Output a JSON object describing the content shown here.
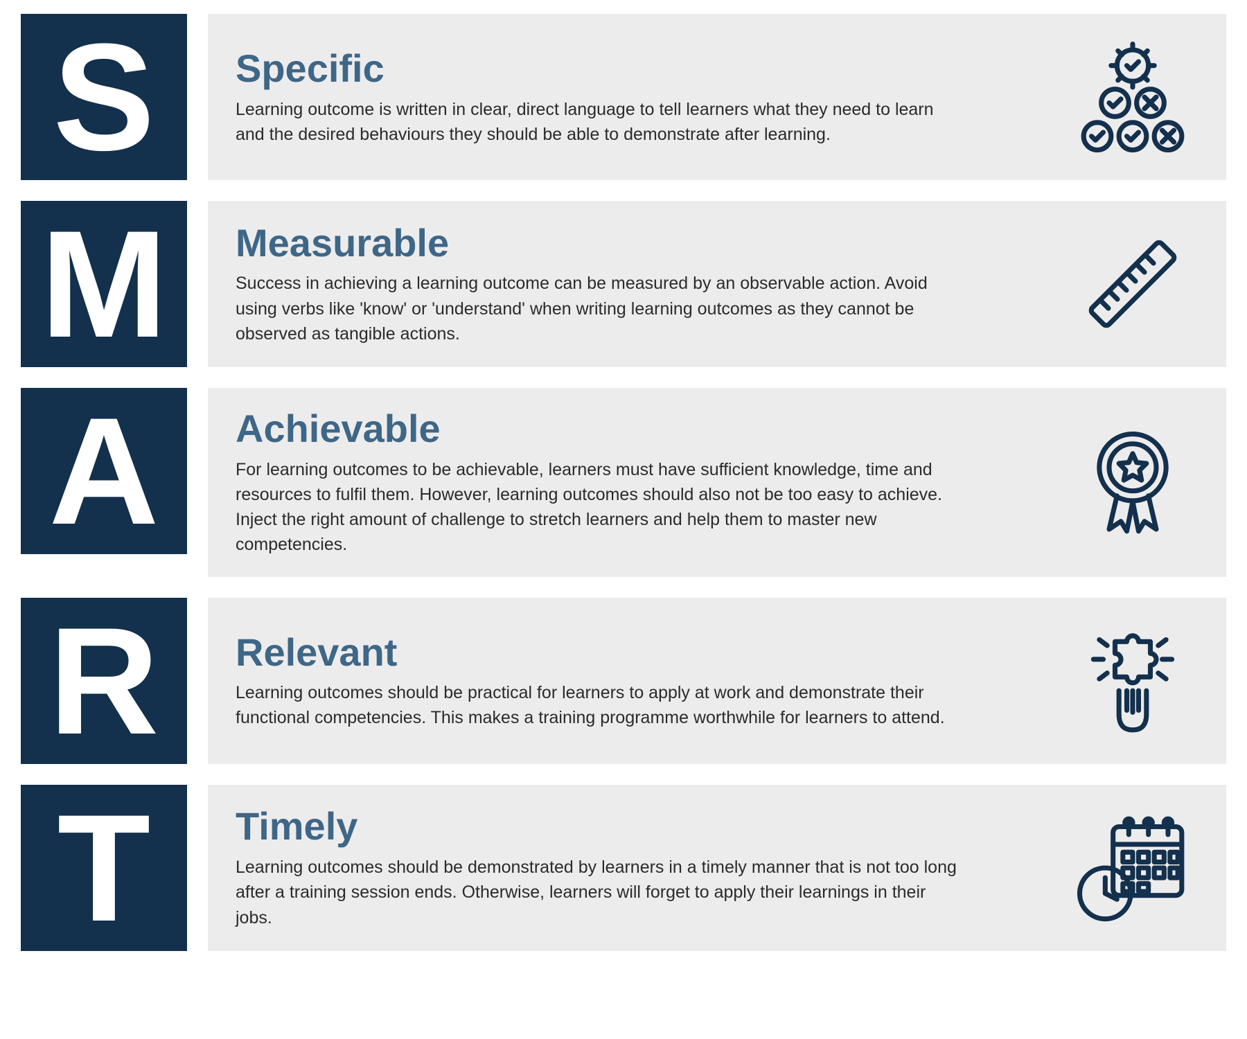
{
  "colors": {
    "letter_bg": "#13304d",
    "content_bg": "#edecec",
    "title": "#3e6787",
    "body_text": "#2b2b2b",
    "icon_stroke": "#13304d"
  },
  "layout": {
    "letter_box_size": 240,
    "letter_fontsize": 220,
    "title_fontsize": 56,
    "body_fontsize": 25,
    "row_gap": 30,
    "icon_size": 170
  },
  "rows": [
    {
      "letter": "S",
      "title": "Specific",
      "desc": "Learning outcome is written in clear, direct language to tell learners what they need to learn and the desired behaviours they should be able to demonstrate after learning.",
      "icon": "quality-check"
    },
    {
      "letter": "M",
      "title": "Measurable",
      "desc": "Success in achieving a learning outcome can be measured by an observable action. Avoid using verbs like 'know' or 'understand' when writing learning outcomes as they cannot be observed as tangible actions.",
      "icon": "ruler"
    },
    {
      "letter": "A",
      "title": "Achievable",
      "desc": "For learning outcomes to be achievable, learners must have sufficient knowledge, time and resources to fulfil them. However, learning outcomes should also not be too easy to achieve. Inject the right amount of challenge to stretch learners and help them to master new competencies.",
      "icon": "award"
    },
    {
      "letter": "R",
      "title": "Relevant",
      "desc": "Learning outcomes should be practical for learners to apply at work and demonstrate their functional competencies. This makes a training programme worthwhile for learners to attend.",
      "icon": "puzzle-hand"
    },
    {
      "letter": "T",
      "title": "Timely",
      "desc": "Learning outcomes should be demonstrated by learners in a timely manner that is not too long after a training session ends. Otherwise, learners will forget to apply their learnings in their jobs.",
      "icon": "calendar-clock"
    }
  ]
}
